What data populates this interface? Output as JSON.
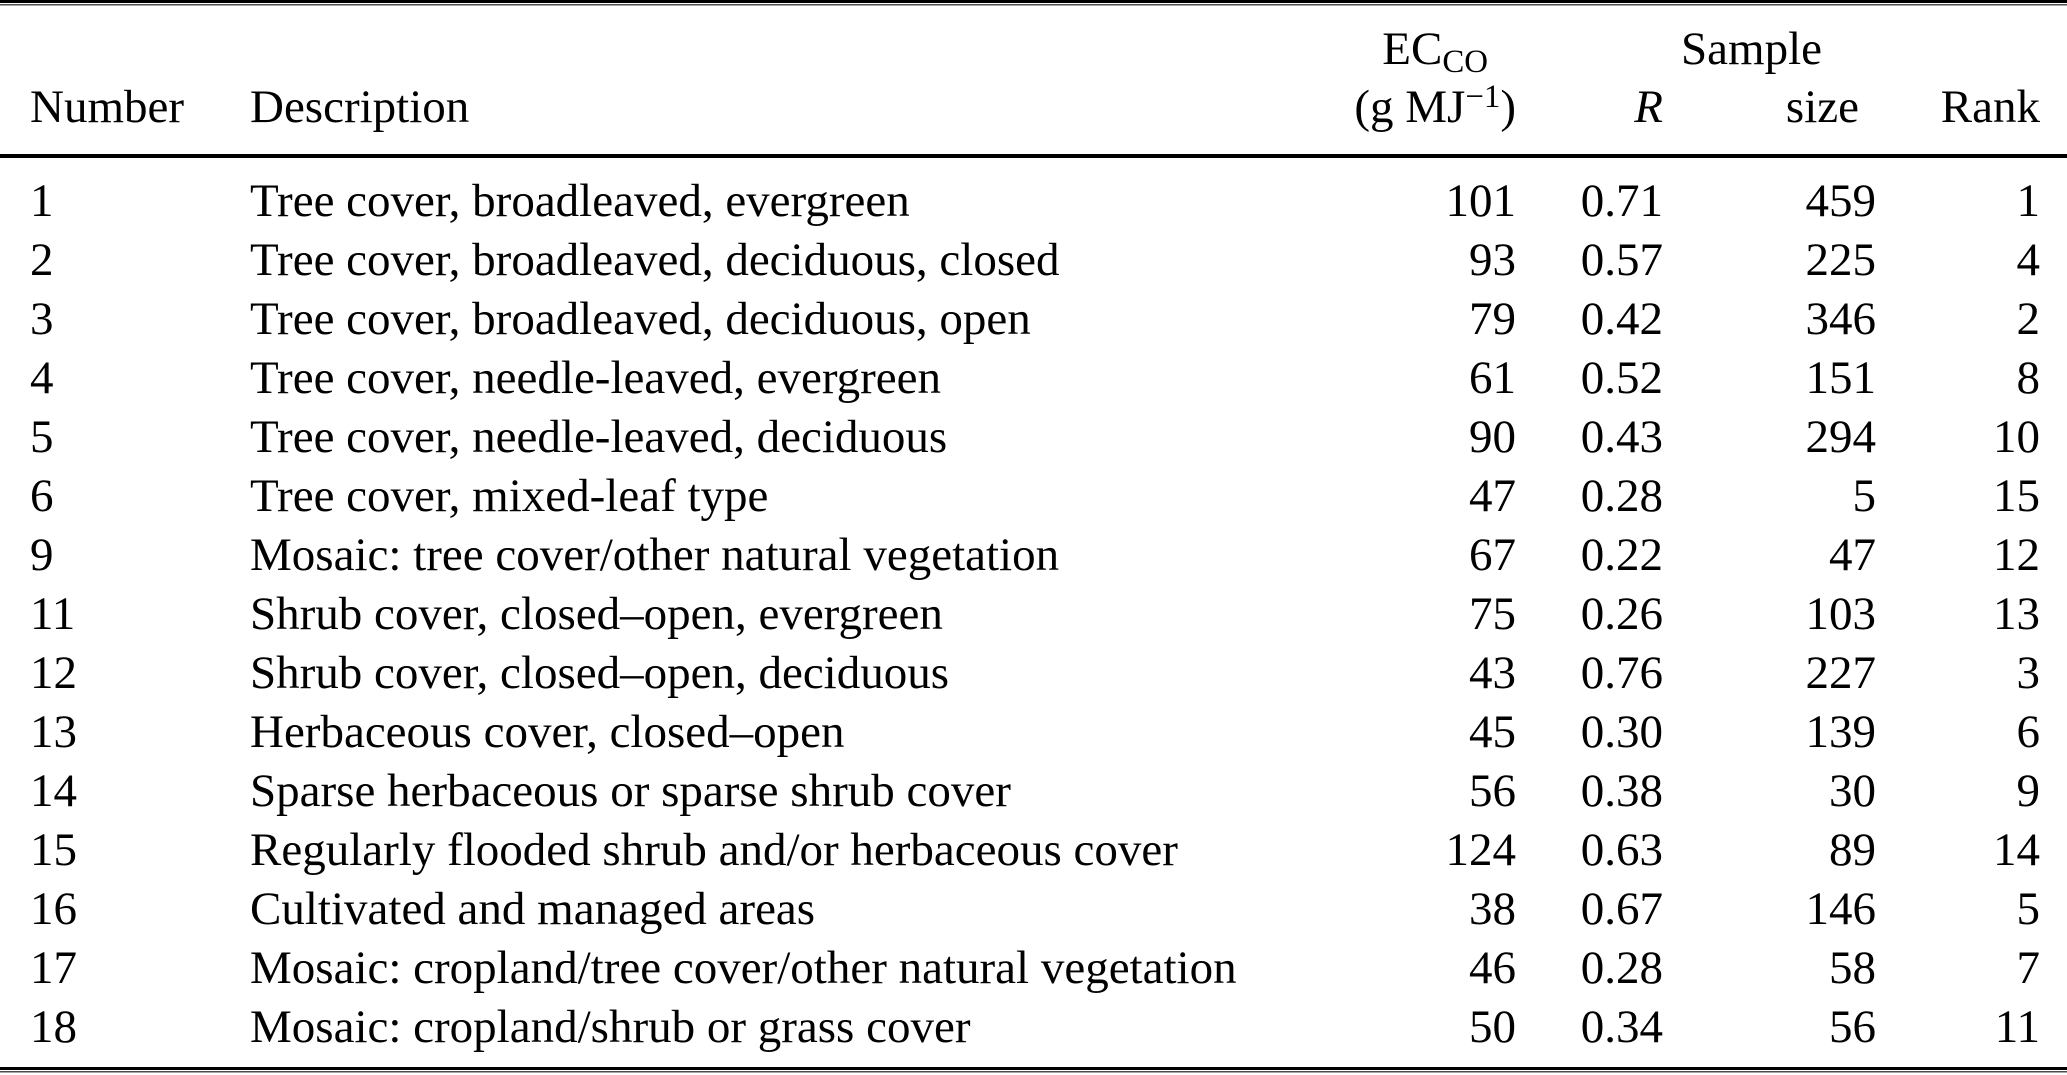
{
  "table": {
    "header": {
      "number": "Number",
      "description": "Description",
      "ec_label": "EC",
      "ec_sub": "CO",
      "ec_unit_open": "(g MJ",
      "ec_unit_sup": "−1",
      "ec_unit_close": ")",
      "r": "R",
      "sample_line1": "Sample",
      "sample_line2": "size",
      "rank": "Rank"
    },
    "rows": [
      {
        "number": "1",
        "description": "Tree cover, broadleaved, evergreen",
        "ec": "101",
        "r": "0.71",
        "sample": "459",
        "rank": "1"
      },
      {
        "number": "2",
        "description": "Tree cover, broadleaved, deciduous, closed",
        "ec": "93",
        "r": "0.57",
        "sample": "225",
        "rank": "4"
      },
      {
        "number": "3",
        "description": "Tree cover, broadleaved, deciduous, open",
        "ec": "79",
        "r": "0.42",
        "sample": "346",
        "rank": "2"
      },
      {
        "number": "4",
        "description": "Tree cover, needle-leaved, evergreen",
        "ec": "61",
        "r": "0.52",
        "sample": "151",
        "rank": "8"
      },
      {
        "number": "5",
        "description": "Tree cover, needle-leaved, deciduous",
        "ec": "90",
        "r": "0.43",
        "sample": "294",
        "rank": "10"
      },
      {
        "number": "6",
        "description": "Tree cover, mixed-leaf type",
        "ec": "47",
        "r": "0.28",
        "sample": "5",
        "rank": "15"
      },
      {
        "number": "9",
        "description": "Mosaic: tree cover/other natural vegetation",
        "ec": "67",
        "r": "0.22",
        "sample": "47",
        "rank": "12"
      },
      {
        "number": "11",
        "description": "Shrub cover, closed–open, evergreen",
        "ec": "75",
        "r": "0.26",
        "sample": "103",
        "rank": "13"
      },
      {
        "number": "12",
        "description": "Shrub cover, closed–open, deciduous",
        "ec": "43",
        "r": "0.76",
        "sample": "227",
        "rank": "3"
      },
      {
        "number": "13",
        "description": "Herbaceous cover, closed–open",
        "ec": "45",
        "r": "0.30",
        "sample": "139",
        "rank": "6"
      },
      {
        "number": "14",
        "description": "Sparse herbaceous or sparse shrub cover",
        "ec": "56",
        "r": "0.38",
        "sample": "30",
        "rank": "9"
      },
      {
        "number": "15",
        "description": "Regularly flooded shrub and/or herbaceous cover",
        "ec": "124",
        "r": "0.63",
        "sample": "89",
        "rank": "14"
      },
      {
        "number": "16",
        "description": "Cultivated and managed areas",
        "ec": "38",
        "r": "0.67",
        "sample": "146",
        "rank": "5"
      },
      {
        "number": "17",
        "description": "Mosaic: cropland/tree cover/other natural vegetation",
        "ec": "46",
        "r": "0.28",
        "sample": "58",
        "rank": "7"
      },
      {
        "number": "18",
        "description": "Mosaic: cropland/shrub or grass cover",
        "ec": "50",
        "r": "0.34",
        "sample": "56",
        "rank": "11"
      }
    ]
  },
  "colors": {
    "text": "#000000",
    "background": "#ffffff",
    "rule": "#000000"
  }
}
